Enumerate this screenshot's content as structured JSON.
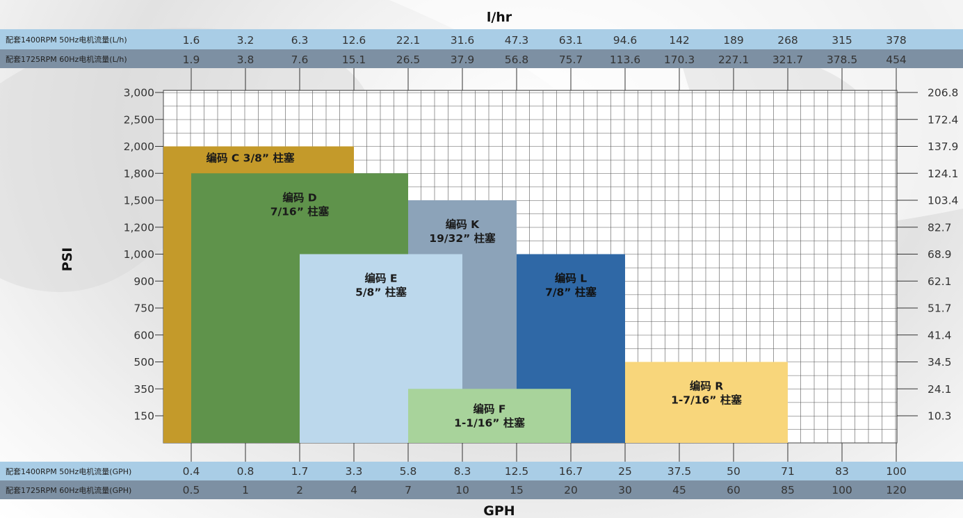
{
  "chart_data": {
    "type": "bar",
    "title": "",
    "top_axis_title": "l/hr",
    "bottom_axis_title": "GPH",
    "left_axis_title": "PSI",
    "top_rows": [
      {
        "label": "配套1400RPM 50Hz电机流量(L/h)",
        "values": [
          "1.6",
          "3.2",
          "6.3",
          "12.6",
          "22.1",
          "31.6",
          "47.3",
          "63.1",
          "94.6",
          "142",
          "189",
          "268",
          "315",
          "378"
        ]
      },
      {
        "label": "配套1725RPM 60Hz电机流量(L/h)",
        "values": [
          "1.9",
          "3.8",
          "7.6",
          "15.1",
          "26.5",
          "37.9",
          "56.8",
          "75.7",
          "113.6",
          "170.3",
          "227.1",
          "321.7",
          "378.5",
          "454"
        ]
      }
    ],
    "bottom_rows": [
      {
        "label": "配套1400RPM 50Hz电机流量(GPH)",
        "values": [
          "0.4",
          "0.8",
          "1.7",
          "3.3",
          "5.8",
          "8.3",
          "12.5",
          "16.7",
          "25",
          "37.5",
          "50",
          "71",
          "83",
          "100"
        ]
      },
      {
        "label": "配套1725RPM 60Hz电机流量(GPH)",
        "values": [
          "0.5",
          "1",
          "2",
          "4",
          "7",
          "10",
          "15",
          "20",
          "30",
          "45",
          "60",
          "85",
          "100",
          "120"
        ]
      }
    ],
    "y_ticks_psi": [
      "150",
      "350",
      "500",
      "600",
      "750",
      "900",
      "1,000",
      "1,200",
      "1,500",
      "1,800",
      "2,000",
      "2,500",
      "3,000"
    ],
    "y_ticks_bar": [
      "10.3",
      "24.1",
      "34.5",
      "41.4",
      "51.7",
      "62.1",
      "68.9",
      "82.7",
      "103.4",
      "124.1",
      "137.9",
      "172.4",
      "206.8"
    ],
    "zones": [
      {
        "name": "C",
        "lines": [
          "编码 C 3/8” 柱塞"
        ],
        "x_from_gph": "0.4",
        "x_to_gph": "3.3",
        "max_psi": "2,000",
        "color": "#C49A2A",
        "text_color": "#1a1a1a"
      },
      {
        "name": "D",
        "lines": [
          "编码 D",
          "7/16” 柱塞"
        ],
        "x_from_gph": "0.4",
        "x_to_gph": "5.8",
        "max_psi": "1,800",
        "color": "#5F934B",
        "text_color": "#1a1a1a"
      },
      {
        "name": "K",
        "lines": [
          "编码 K",
          "19/32” 柱塞"
        ],
        "x_from_gph": "5.8",
        "x_to_gph": "12.5",
        "max_psi": "1,500",
        "color": "#8CA3B9",
        "text_color": "#1a1a1a"
      },
      {
        "name": "E",
        "lines": [
          "编码 E",
          "5/8” 柱塞"
        ],
        "x_from_gph": "1.7",
        "x_to_gph": "8.3",
        "max_psi": "1,000",
        "color": "#BCD8EC",
        "text_color": "#1a1a1a"
      },
      {
        "name": "L",
        "lines": [
          "编码 L",
          "7/8” 柱塞"
        ],
        "x_from_gph": "12.5",
        "x_to_gph": "25",
        "max_psi": "1,000",
        "color": "#2F68A6",
        "text_color": "#111111"
      },
      {
        "name": "F",
        "lines": [
          "编码 F",
          "1-1/16” 柱塞"
        ],
        "x_from_gph": "5.8",
        "x_to_gph": "16.7",
        "max_psi": "350",
        "color": "#A8D39B",
        "text_color": "#1a1a1a"
      },
      {
        "name": "R",
        "lines": [
          "编码 R",
          "1-7/16” 柱塞"
        ],
        "x_from_gph": "25",
        "x_to_gph": "71",
        "max_psi": "500",
        "color": "#F8D67B",
        "text_color": "#1a1a1a"
      }
    ],
    "grid": true
  }
}
